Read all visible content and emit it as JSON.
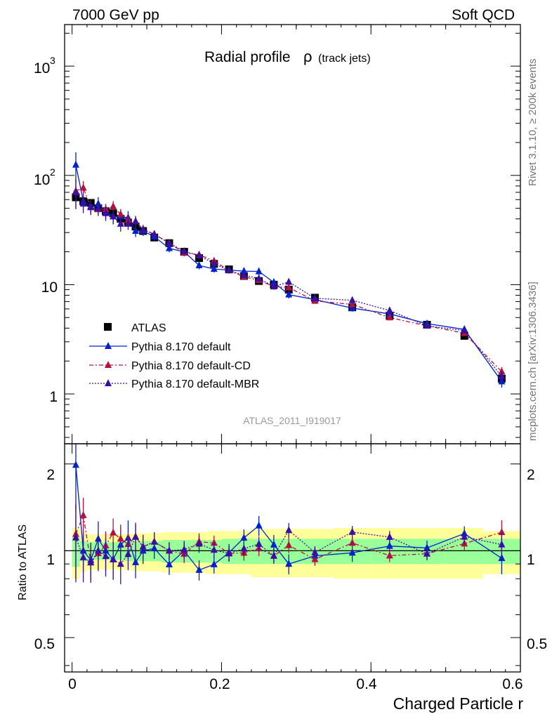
{
  "header": {
    "left": "7000 GeV pp",
    "right": "Soft QCD"
  },
  "side_text": {
    "rivet": "Rivet 3.1.10, ≥ 200k events",
    "mcplots": "mcplots.cern.ch [arXiv:1306.3436]"
  },
  "watermark": "ATLAS_2011_I919017",
  "title": {
    "main": "Radial profile",
    "symbol": "ρ",
    "sub": "(track jets)"
  },
  "xlabel": "Charged Particle r",
  "ratio_ylabel": "Ratio to ATLAS",
  "upper_yticks": [
    "10",
    "3",
    "10",
    "2",
    "10",
    "1"
  ],
  "ratio_yticks": [
    "2",
    "1",
    "0.5"
  ],
  "ratio_yticks_right": [
    "2",
    "1",
    "0.5"
  ],
  "xticks": [
    "0",
    "0.2",
    "0.4",
    "0.6"
  ],
  "legend": [
    {
      "label": "ATLAS",
      "color": "#000000"
    },
    {
      "label": "Pythia 8.170 default",
      "color": "#0022cc"
    },
    {
      "label": "Pythia 8.170 default-CD",
      "color": "#b3123e"
    },
    {
      "label": "Pythia 8.170 default-MBR",
      "color": "#3a0fa3"
    }
  ],
  "chart_data": {
    "type": "line",
    "title": "Radial profile ρ (track jets)",
    "xlabel": "Charged Particle r",
    "ylabel": "",
    "yscale": "log",
    "xlim": [
      -0.01,
      0.6
    ],
    "ylim": [
      0.35,
      2400
    ],
    "ratio_ylim": [
      0.38,
      2.35
    ],
    "x": [
      0.005,
      0.015,
      0.025,
      0.035,
      0.045,
      0.055,
      0.065,
      0.075,
      0.085,
      0.095,
      0.11,
      0.13,
      0.15,
      0.17,
      0.19,
      0.21,
      0.23,
      0.25,
      0.27,
      0.29,
      0.325,
      0.375,
      0.425,
      0.475,
      0.525,
      0.575
    ],
    "series": [
      {
        "name": "ATLAS",
        "color": "#000000",
        "marker": "square",
        "values": [
          63,
          58,
          56,
          50,
          47,
          45,
          40,
          37,
          34,
          31,
          27,
          24,
          20,
          17.5,
          15.5,
          13.8,
          12,
          10.8,
          10,
          9,
          7.6,
          6.2,
          5.2,
          4.3,
          3.4,
          1.38
        ],
        "band_inner": [
          0.12,
          0.08,
          0.07,
          0.07,
          0.07,
          0.07,
          0.07,
          0.08,
          0.08,
          0.08,
          0.08,
          0.09,
          0.09,
          0.09,
          0.09,
          0.1,
          0.1,
          0.1,
          0.1,
          0.1,
          0.1,
          0.1,
          0.1,
          0.1,
          0.1,
          0.1
        ],
        "band_outer": [
          0.2,
          0.16,
          0.14,
          0.14,
          0.14,
          0.14,
          0.14,
          0.14,
          0.15,
          0.15,
          0.15,
          0.16,
          0.16,
          0.16,
          0.17,
          0.17,
          0.17,
          0.19,
          0.19,
          0.19,
          0.19,
          0.2,
          0.2,
          0.2,
          0.2,
          0.17
        ]
      },
      {
        "name": "Pythia 8.170 default",
        "color": "#0022cc",
        "marker": "triangle",
        "dash": "",
        "values": [
          125,
          58,
          52,
          55,
          47,
          42,
          42,
          41,
          31,
          31,
          27.5,
          21.5,
          20,
          15,
          13.9,
          13.6,
          13.3,
          13.2,
          10.5,
          8.1,
          7.3,
          6.1,
          5.4,
          4.4,
          3.9,
          1.3
        ],
        "errors": [
          0.3,
          0.15,
          0.15,
          0.15,
          0.15,
          0.15,
          0.15,
          0.15,
          0.12,
          0.1,
          0.08,
          0.08,
          0.08,
          0.08,
          0.07,
          0.07,
          0.07,
          0.08,
          0.08,
          0.08,
          0.07,
          0.07,
          0.06,
          0.06,
          0.06,
          0.12
        ]
      },
      {
        "name": "Pythia 8.170 default-CD",
        "color": "#b3123e",
        "marker": "triangle",
        "dash": "6,3,2,3",
        "values": [
          72,
          77,
          51,
          49,
          49,
          52,
          44,
          39,
          38,
          32,
          29,
          24,
          19.5,
          18.8,
          16.5,
          13.5,
          11.8,
          11,
          9.6,
          9.4,
          7.1,
          6.6,
          5.0,
          4.2,
          3.6,
          1.6
        ],
        "errors": [
          0.3,
          0.15,
          0.12,
          0.12,
          0.12,
          0.12,
          0.12,
          0.1,
          0.1,
          0.1,
          0.08,
          0.07,
          0.07,
          0.07,
          0.06,
          0.06,
          0.06,
          0.06,
          0.06,
          0.06,
          0.05,
          0.05,
          0.05,
          0.05,
          0.06,
          0.1
        ]
      },
      {
        "name": "Pythia 8.170 default-MBR",
        "color": "#3a0fa3",
        "marker": "triangle",
        "dash": "2,2",
        "values": [
          70,
          55,
          51,
          50,
          45,
          42,
          36,
          36,
          38,
          32,
          29,
          24,
          20.2,
          18.5,
          15.6,
          13.5,
          12.2,
          11.4,
          9.6,
          10.6,
          7.5,
          7.2,
          5.8,
          4.2,
          3.8,
          1.45
        ],
        "errors": [
          0.3,
          0.18,
          0.15,
          0.15,
          0.15,
          0.15,
          0.15,
          0.12,
          0.12,
          0.1,
          0.08,
          0.07,
          0.07,
          0.07,
          0.06,
          0.06,
          0.06,
          0.06,
          0.06,
          0.06,
          0.05,
          0.05,
          0.05,
          0.05,
          0.06,
          0.1
        ]
      }
    ]
  }
}
